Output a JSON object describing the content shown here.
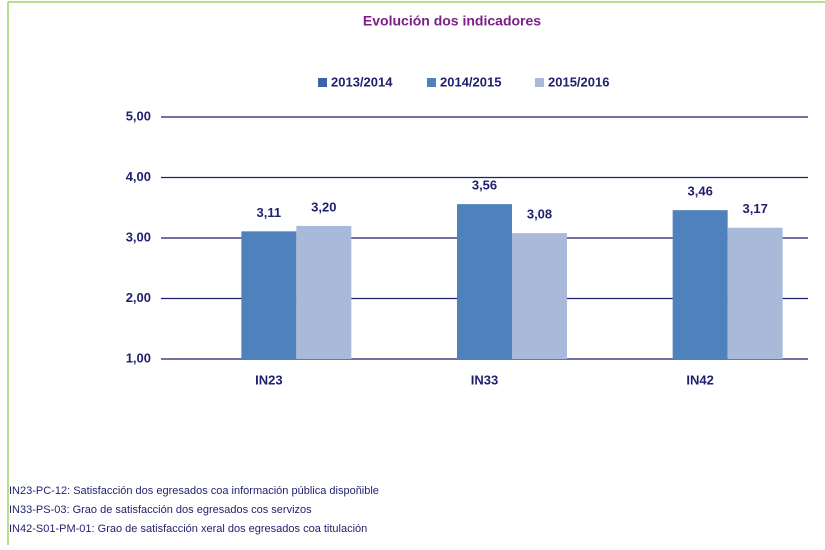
{
  "chart_data": {
    "type": "bar",
    "title": "Evolución dos indicadores",
    "categories": [
      "IN23",
      "IN33",
      "IN42"
    ],
    "series": [
      {
        "name": "2013/2014",
        "color": "#3d62a8",
        "values": [
          null,
          null,
          null
        ]
      },
      {
        "name": "2014/2015",
        "color": "#4f81bd",
        "values": [
          3.11,
          3.56,
          3.46
        ],
        "value_labels": [
          "3,11",
          "3,56",
          "3,46"
        ]
      },
      {
        "name": "2015/2016",
        "color": "#a9b9d9",
        "values": [
          3.2,
          3.08,
          3.17
        ],
        "value_labels": [
          "3,20",
          "3,08",
          "3,17"
        ]
      }
    ],
    "ylim": [
      1,
      5
    ],
    "yticks": [
      {
        "value": 1,
        "label": "1,00"
      },
      {
        "value": 2,
        "label": "2,00"
      },
      {
        "value": 3,
        "label": "3,00"
      },
      {
        "value": 4,
        "label": "4,00"
      },
      {
        "value": 5,
        "label": "5,00"
      }
    ],
    "grid": true,
    "legend": "top",
    "notes": [
      "IN23-PC-12: Satisfacción dos egresados coa información pública dispoñible",
      "IN33-PS-03: Grao de satisfacción dos egresados cos servizos",
      "IN42-S01-PM-01: Grao de satisfacción xeral dos egresados coa titulación"
    ]
  }
}
